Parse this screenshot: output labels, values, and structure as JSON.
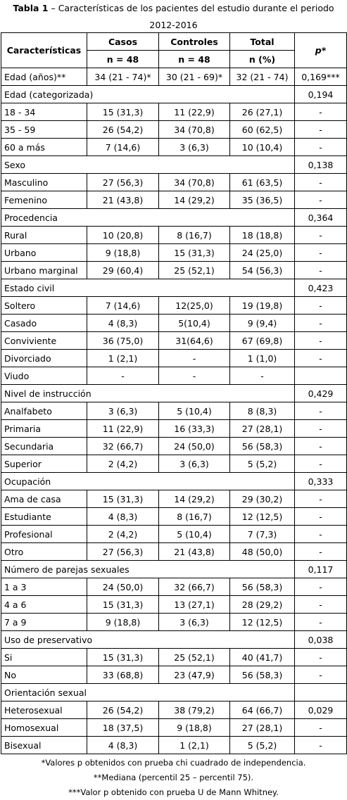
{
  "caption": {
    "label": "Tabla 1",
    "text": "– Características de los pacientes del estudio durante el periodo 2012-2016"
  },
  "header": {
    "characteristics": "Características",
    "groups": [
      {
        "name": "Casos",
        "n": "n = 48"
      },
      {
        "name": "Controles",
        "n": "n = 48"
      },
      {
        "name": "Total",
        "n": "n (%)"
      }
    ],
    "p": "p*"
  },
  "rows": [
    [
      "Edad (años)**",
      "34 (21 - 74)*",
      "30 (21 - 69)*",
      "32 (21 - 74)",
      "0,169***"
    ],
    [
      "Edad (categorizada)",
      "0,194"
    ],
    [
      "18 - 34",
      "15 (31,3)",
      "11 (22,9)",
      "26 (27,1)",
      "-"
    ],
    [
      "35 - 59",
      "26 (54,2)",
      "34 (70,8)",
      "60 (62,5)",
      "-"
    ],
    [
      "60 a más",
      "7 (14,6)",
      "3 (6,3)",
      "10 (10,4)",
      "-"
    ],
    [
      "Sexo",
      "0,138"
    ],
    [
      "Masculino",
      "27 (56,3)",
      "34 (70,8)",
      "61 (63,5)",
      "-"
    ],
    [
      "Femenino",
      "21 (43,8)",
      "14 (29,2)",
      "35 (36,5)",
      "-"
    ],
    [
      "Procedencia",
      "0,364"
    ],
    [
      "Rural",
      "10 (20,8)",
      "8 (16,7)",
      "18 (18,8)",
      "-"
    ],
    [
      "Urbano",
      "9 (18,8)",
      "15 (31,3)",
      "24 (25,0)",
      "-"
    ],
    [
      "Urbano marginal",
      "29 (60,4)",
      "25 (52,1)",
      "54 (56,3)",
      "-"
    ],
    [
      "Estado civil",
      "0,423"
    ],
    [
      "Soltero",
      "7 (14,6)",
      "12(25,0)",
      "19 (19,8)",
      "-"
    ],
    [
      "Casado",
      "4 (8,3)",
      "5(10,4)",
      "9 (9,4)",
      "-"
    ],
    [
      "Conviviente",
      "36 (75,0)",
      "31(64,6)",
      "67 (69,8)",
      "-"
    ],
    [
      "Divorciado",
      "1 (2,1)",
      "-",
      "1 (1,0)",
      "-"
    ],
    [
      "Viudo",
      "-",
      "-",
      "-"
    ],
    [
      "Nivel de instrucción",
      "0,429"
    ],
    [
      "Analfabeto",
      "3 (6,3)",
      "5 (10,4)",
      "8 (8,3)",
      "-"
    ],
    [
      "Primaria",
      "11 (22,9)",
      "16 (33,3)",
      "27 (28,1)",
      "-"
    ],
    [
      "Secundaria",
      "32 (66,7)",
      "24 (50,0)",
      "56 (58,3)",
      "-"
    ],
    [
      "Superior",
      "2 (4,2)",
      "3 (6,3)",
      "5 (5,2)",
      "-"
    ],
    [
      "Ocupación",
      "0,333"
    ],
    [
      "Ama de casa",
      "15 (31,3)",
      "14 (29,2)",
      "29 (30,2)",
      "-"
    ],
    [
      "Estudiante",
      "4 (8,3)",
      "8 (16,7)",
      "12 (12,5)",
      "-"
    ],
    [
      "Profesional",
      "2 (4,2)",
      "5 (10,4)",
      "7 (7,3)",
      "-"
    ],
    [
      "Otro",
      "27 (56,3)",
      "21 (43,8)",
      "48 (50,0)",
      "-"
    ],
    [
      "Número de parejas sexuales",
      "0,117"
    ],
    [
      "1 a 3",
      "24 (50,0)",
      "32 (66,7)",
      "56 (58,3)",
      "-"
    ],
    [
      "4 a 6",
      "15 (31,3)",
      "13 (27,1)",
      "28 (29,2)",
      "-"
    ],
    [
      "7 a 9",
      "9 (18,8)",
      "3 (6,3)",
      "12 (12,5)",
      "-"
    ],
    [
      "Uso de preservativo",
      "0,038"
    ],
    [
      "Si",
      "15 (31,3)",
      "25 (52,1)",
      "40 (41,7)",
      "-"
    ],
    [
      "No",
      "33 (68,8)",
      "23 (47,9)",
      "56 (58,3)",
      "-"
    ],
    [
      "Orientación sexual"
    ],
    [
      "Heterosexual",
      "26 (54,2)",
      "38 (79,2)",
      "64 (66,7)",
      "0,029"
    ],
    [
      "Homosexual",
      "18 (37,5)",
      "9 (18,8)",
      "27 (28,1)",
      "-"
    ],
    [
      "Bisexual",
      "4 (8,3)",
      "1 (2,1)",
      "5 (5,2)",
      "-"
    ]
  ],
  "footnotes": [
    "*Valores p obtenidos con prueba chi cuadrado de independencia.",
    "**Mediana (percentil 25 – percentil 75).",
    "***Valor p obtenido con prueba U de Mann Whitney."
  ]
}
